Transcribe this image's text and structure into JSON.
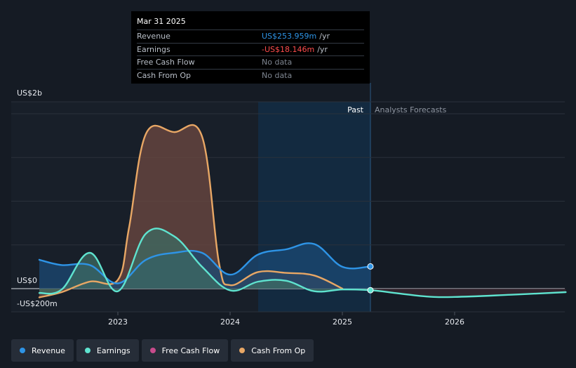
{
  "chart_data": {
    "type": "area",
    "ylabel_top": "US$2b",
    "ylabel_zero": "US$0",
    "ylabel_bottom": "-US$200m",
    "ylim": [
      -250,
      2050
    ],
    "xlim": [
      2022.3,
      2026.99
    ],
    "x_ticks": [
      "2023",
      "2024",
      "2025",
      "2026"
    ],
    "x_tick_values": [
      2023,
      2024,
      2025,
      2026
    ],
    "past_label": "Past",
    "forecast_label": "Analysts Forecasts",
    "past_region_start": 2024.25,
    "forecast_start": 2025.25,
    "grid": true,
    "legend_position": "bottom-left",
    "series": [
      {
        "name": "Cash From Op",
        "color": "#e8a765",
        "fill": "#6e4a42",
        "x": [
          2022.3,
          2022.5,
          2022.75,
          2023.0,
          2023.1,
          2023.25,
          2023.5,
          2023.75,
          2023.9,
          2024.0,
          2024.25,
          2024.5,
          2024.75,
          2025.0
        ],
        "y": [
          -100,
          -40,
          80,
          100,
          700,
          1770,
          1790,
          1740,
          300,
          40,
          190,
          180,
          150,
          0
        ]
      },
      {
        "name": "Revenue",
        "color": "#2e94e6",
        "fill": "#1b4a74",
        "x": [
          2022.3,
          2022.5,
          2022.75,
          2023.0,
          2023.25,
          2023.5,
          2023.75,
          2024.0,
          2024.25,
          2024.5,
          2024.75,
          2025.0,
          2025.25
        ],
        "y": [
          330,
          270,
          270,
          60,
          330,
          410,
          410,
          160,
          390,
          450,
          510,
          250,
          254
        ]
      },
      {
        "name": "Earnings",
        "color": "#5fe3cf",
        "fill": "#3e6b63",
        "x": [
          2022.3,
          2022.5,
          2022.75,
          2023.0,
          2023.25,
          2023.5,
          2023.75,
          2024.0,
          2024.25,
          2024.5,
          2024.75,
          2025.0,
          2025.25,
          2025.5,
          2025.75,
          2026.0,
          2026.5,
          2026.99
        ],
        "y": [
          -50,
          -10,
          410,
          -30,
          630,
          600,
          250,
          -20,
          80,
          90,
          -30,
          -10,
          -18,
          -55,
          -90,
          -95,
          -70,
          -40
        ]
      },
      {
        "name": "Free Cash Flow",
        "color": "#c84b8c",
        "x": [],
        "y": []
      }
    ]
  },
  "tooltip": {
    "date": "Mar 31 2025",
    "rows": [
      {
        "name": "Revenue",
        "value": "US$253.959m",
        "unit": "/yr",
        "color": "#2e94e6"
      },
      {
        "name": "Earnings",
        "value": "-US$18.146m",
        "unit": "/yr",
        "color": "#ff4d4d"
      },
      {
        "name": "Free Cash Flow",
        "value": "No data",
        "unit": "",
        "color": "#7e8590"
      },
      {
        "name": "Cash From Op",
        "value": "No data",
        "unit": "",
        "color": "#7e8590"
      }
    ]
  },
  "legend": [
    {
      "label": "Revenue",
      "color": "#2e94e6"
    },
    {
      "label": "Earnings",
      "color": "#5fe3cf"
    },
    {
      "label": "Free Cash Flow",
      "color": "#c84b8c"
    },
    {
      "label": "Cash From Op",
      "color": "#e8a765"
    }
  ]
}
